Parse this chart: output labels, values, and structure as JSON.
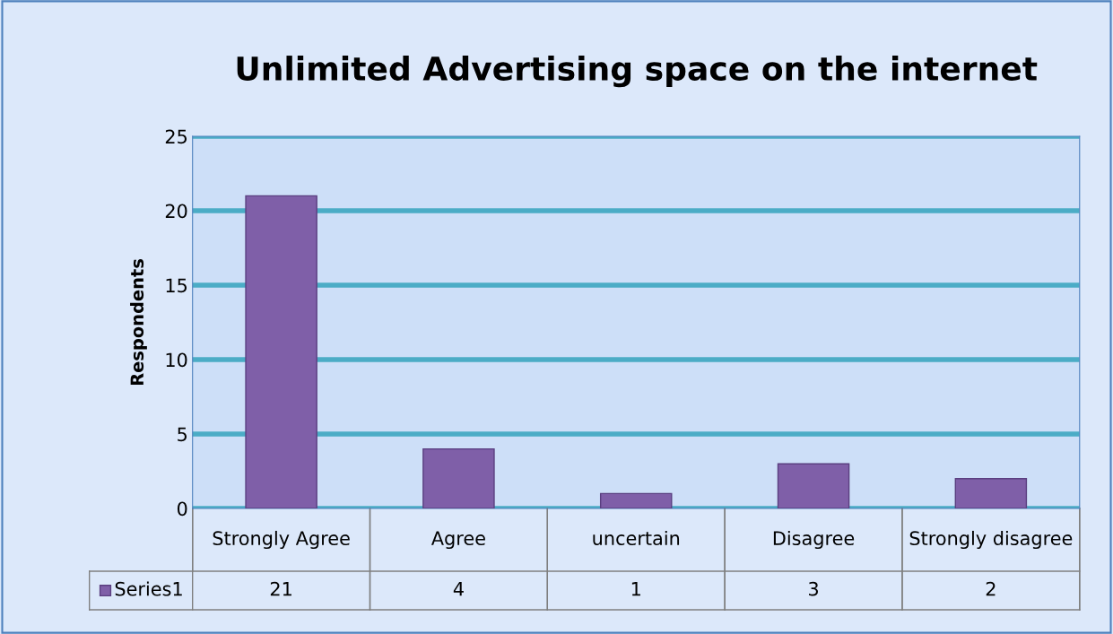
{
  "chart_data": {
    "type": "bar",
    "title": "Unlimited Advertising space on the internet",
    "ylabel": "Respondents",
    "categories": [
      "Strongly Agree",
      "Agree",
      "uncertain",
      "Disagree",
      "Strongly disagree"
    ],
    "series": [
      {
        "name": "Series1",
        "color": "#7f5fa8",
        "values": [
          21,
          4,
          1,
          3,
          2
        ]
      }
    ],
    "ylim": [
      0,
      25
    ],
    "yticks": [
      0,
      5,
      10,
      15,
      20,
      25
    ],
    "grid": "y",
    "legend": "bottom",
    "data_labels": true
  }
}
